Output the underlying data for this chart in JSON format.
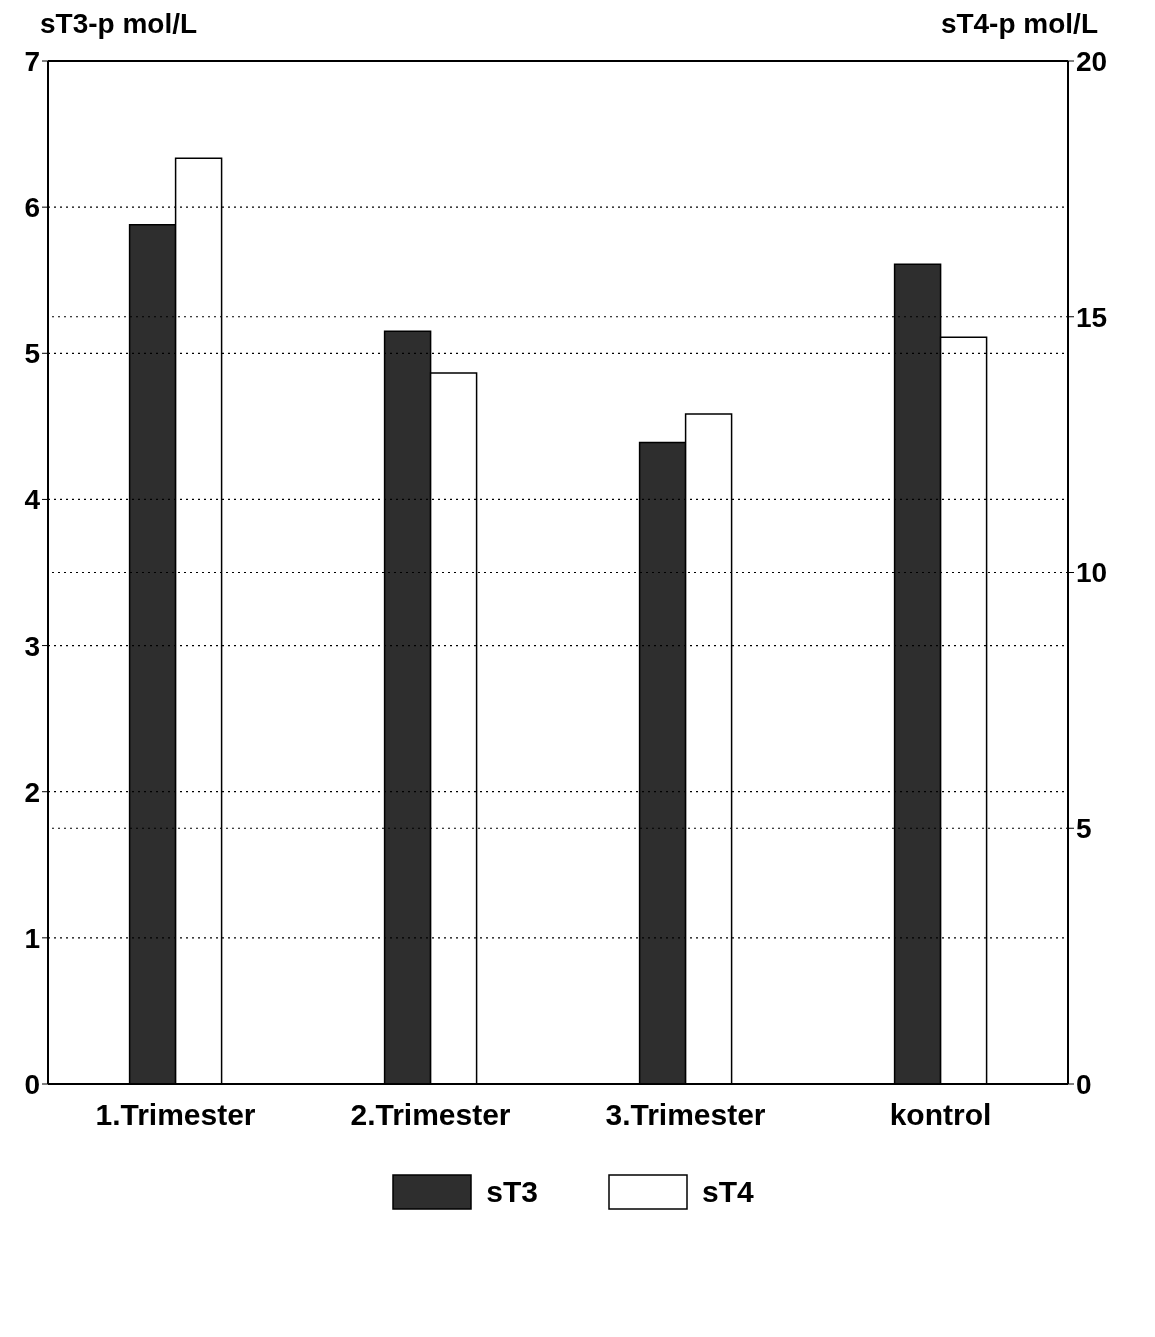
{
  "chart_data": {
    "type": "bar",
    "ylabel": "sT3-p mol/L",
    "y2label": "sT4-p mol/L",
    "categories": [
      "1.Trimester",
      "2.Trimester",
      "3.Trimester",
      "kontrol"
    ],
    "series": [
      {
        "name": "sT3",
        "color": "#2e2e2e",
        "values": [
          5.88,
          5.15,
          4.39,
          5.61
        ]
      },
      {
        "name": "sT4",
        "color": "#ffffff",
        "axis": "y2",
        "values": [
          18.1,
          13.9,
          13.1,
          14.6
        ]
      }
    ],
    "ylim": [
      0,
      7
    ],
    "yticks": [
      0,
      1,
      2,
      3,
      4,
      5,
      6,
      7
    ],
    "y2lim": [
      0,
      20
    ],
    "y2ticks": [
      0,
      5,
      10,
      15,
      20
    ],
    "grid": true,
    "legend": "bottom"
  }
}
